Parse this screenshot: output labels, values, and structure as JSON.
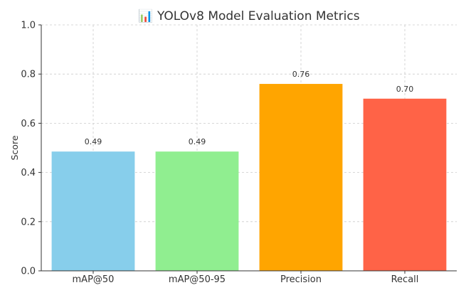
{
  "chart_data": {
    "type": "bar",
    "title": "📊 YOLOv8 Model Evaluation Metrics",
    "xlabel": "",
    "ylabel": "Score",
    "ylim": [
      0,
      1.0
    ],
    "categories": [
      "mAP@50",
      "mAP@50-95",
      "Precision",
      "Recall"
    ],
    "values": [
      0.485,
      0.485,
      0.76,
      0.7
    ],
    "value_labels": [
      "0.49",
      "0.49",
      "0.76",
      "0.70"
    ],
    "colors": [
      "#87CEEB",
      "#90EE90",
      "#FFA500",
      "#FF6347"
    ],
    "y_ticks": [
      0.0,
      0.2,
      0.4,
      0.6,
      0.8,
      1.0
    ],
    "y_tick_labels": [
      "0.0",
      "0.2",
      "0.4",
      "0.6",
      "0.8",
      "1.0"
    ],
    "grid": true,
    "grid_color": "#cccccc"
  }
}
